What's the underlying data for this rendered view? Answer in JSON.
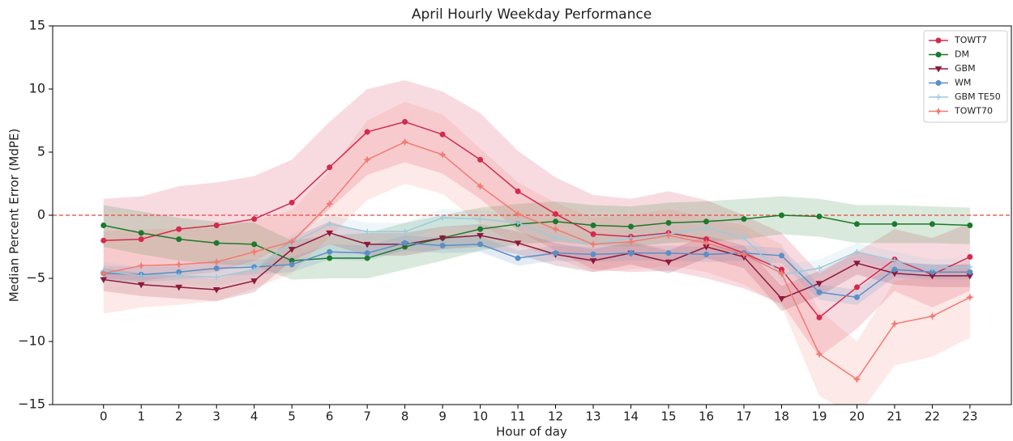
{
  "chart_data": {
    "type": "line",
    "title": "April Hourly Weekday Performance",
    "xlabel": "Hour of day",
    "ylabel": "Median Percent Error (MdPE)",
    "x": [
      0,
      1,
      2,
      3,
      4,
      5,
      6,
      7,
      8,
      9,
      10,
      11,
      12,
      13,
      14,
      15,
      16,
      17,
      18,
      19,
      20,
      21,
      22,
      23
    ],
    "xlim": [
      -1.35,
      24.1
    ],
    "xticks": [
      0,
      1,
      2,
      3,
      4,
      5,
      6,
      7,
      8,
      9,
      10,
      11,
      12,
      13,
      14,
      15,
      16,
      17,
      18,
      19,
      20,
      21,
      22,
      23
    ],
    "ylim": [
      -15,
      15
    ],
    "yticks": [
      {
        "value": -15,
        "label": "−15"
      },
      {
        "value": -10,
        "label": "−10"
      },
      {
        "value": -5,
        "label": "−5"
      },
      0,
      5,
      10,
      15
    ],
    "hline": {
      "value": 0,
      "color": "#e8463c"
    },
    "legend": "upper right",
    "series": [
      {
        "name": "TOWT7",
        "color": "#d42a4e",
        "marker": "circle",
        "values": [
          -2.0,
          -1.9,
          -1.1,
          -0.8,
          -0.3,
          1.0,
          3.8,
          6.6,
          7.4,
          6.4,
          4.4,
          1.9,
          0.1,
          -1.5,
          -1.7,
          -1.4,
          -1.9,
          -3.0,
          -4.3,
          -8.1,
          -5.7,
          -3.5,
          -4.7,
          -3.3
        ],
        "upper": [
          1.3,
          1.5,
          2.3,
          2.6,
          3.1,
          4.4,
          7.4,
          10.0,
          10.7,
          9.8,
          8.1,
          5.1,
          3.0,
          1.6,
          1.3,
          1.9,
          1.2,
          0.0,
          -1.4,
          -4.6,
          -2.9,
          -1.1,
          -1.8,
          -0.6
        ],
        "lower": [
          -5.0,
          -5.2,
          -4.8,
          -4.5,
          -3.6,
          -2.2,
          0.5,
          3.2,
          4.2,
          3.3,
          1.3,
          -1.2,
          -2.8,
          -4.3,
          -4.5,
          -4.4,
          -5.0,
          -5.8,
          -7.0,
          -11.2,
          -9.0,
          -6.0,
          -7.3,
          -6.0
        ]
      },
      {
        "name": "DM",
        "color": "#1b7a2c",
        "marker": "circle",
        "values": [
          -0.8,
          -1.4,
          -1.9,
          -2.2,
          -2.3,
          -3.6,
          -3.4,
          -3.4,
          -2.5,
          -1.8,
          -1.1,
          -0.7,
          -0.5,
          -0.8,
          -0.9,
          -0.6,
          -0.5,
          -0.3,
          0.0,
          -0.1,
          -0.7,
          -0.7,
          -0.7,
          -0.8
        ],
        "upper": [
          0.8,
          0.3,
          -0.2,
          -0.5,
          -0.6,
          -2.0,
          -1.6,
          -1.4,
          -0.6,
          0.0,
          0.6,
          0.9,
          1.1,
          0.8,
          0.7,
          1.0,
          1.1,
          1.3,
          1.5,
          1.3,
          0.8,
          0.8,
          0.7,
          0.6
        ],
        "lower": [
          -2.5,
          -3.1,
          -3.6,
          -3.9,
          -4.0,
          -5.1,
          -5.0,
          -5.0,
          -4.3,
          -3.6,
          -2.8,
          -2.3,
          -2.1,
          -2.4,
          -2.5,
          -2.2,
          -2.1,
          -1.9,
          -1.5,
          -1.7,
          -2.2,
          -2.2,
          -2.2,
          -2.3
        ]
      },
      {
        "name": "GBM",
        "color": "#8c1a3c",
        "marker": "triangle",
        "values": [
          -5.1,
          -5.5,
          -5.7,
          -5.9,
          -5.2,
          -2.7,
          -1.4,
          -2.3,
          -2.3,
          -1.8,
          -1.6,
          -2.2,
          -3.1,
          -3.6,
          -3.0,
          -3.7,
          -2.5,
          -3.3,
          -6.6,
          -5.4,
          -3.8,
          -4.6,
          -4.8,
          -4.8
        ],
        "upper": [
          -4.2,
          -4.6,
          -4.8,
          -5.0,
          -4.3,
          -1.8,
          -0.5,
          -1.4,
          -1.4,
          -0.9,
          -0.7,
          -1.3,
          -2.2,
          -2.7,
          -2.1,
          -2.8,
          -1.6,
          -2.4,
          -5.6,
          -4.4,
          -2.9,
          -3.7,
          -3.9,
          -3.9
        ],
        "lower": [
          -6.0,
          -6.4,
          -6.6,
          -6.8,
          -6.1,
          -3.6,
          -2.3,
          -3.2,
          -3.2,
          -2.7,
          -2.5,
          -3.1,
          -4.0,
          -4.5,
          -3.9,
          -4.6,
          -3.4,
          -4.2,
          -7.6,
          -6.4,
          -4.7,
          -5.5,
          -5.7,
          -5.7
        ]
      },
      {
        "name": "WM",
        "color": "#5a8fc6",
        "marker": "circle",
        "values": [
          -4.6,
          -4.7,
          -4.5,
          -4.2,
          -4.1,
          -3.9,
          -2.9,
          -3.0,
          -2.2,
          -2.4,
          -2.3,
          -3.4,
          -3.0,
          -3.1,
          -3.0,
          -3.0,
          -3.1,
          -3.0,
          -3.2,
          -6.1,
          -6.5,
          -4.3,
          -4.5,
          -4.5
        ],
        "upper": [
          -4.0,
          -4.1,
          -3.9,
          -3.6,
          -3.5,
          -3.3,
          -2.3,
          -2.4,
          -1.6,
          -1.8,
          -1.7,
          -2.8,
          -2.4,
          -2.5,
          -2.4,
          -2.4,
          -2.5,
          -2.4,
          -2.6,
          -5.5,
          -5.9,
          -3.7,
          -3.9,
          -3.9
        ],
        "lower": [
          -5.2,
          -5.3,
          -5.1,
          -4.8,
          -4.7,
          -4.5,
          -3.5,
          -3.6,
          -2.8,
          -3.0,
          -2.9,
          -4.0,
          -3.6,
          -3.7,
          -3.6,
          -3.6,
          -3.7,
          -3.6,
          -3.8,
          -6.7,
          -7.1,
          -4.9,
          -5.1,
          -5.1
        ]
      },
      {
        "name": "GBM TE50",
        "color": "#9ccade",
        "marker": "plus",
        "values": [
          -4.4,
          -4.8,
          -4.8,
          -4.9,
          -4.3,
          -2.2,
          -0.7,
          -1.3,
          -1.3,
          -0.2,
          -0.3,
          -0.6,
          -1.8,
          -2.3,
          -1.8,
          -1.5,
          -1.0,
          -1.8,
          -4.7,
          -4.2,
          -2.9,
          -3.6,
          -4.2,
          -4.1
        ],
        "upper": [
          -3.7,
          -4.1,
          -4.1,
          -4.2,
          -3.6,
          -1.5,
          0.0,
          -0.6,
          -0.6,
          0.5,
          0.4,
          0.1,
          -1.1,
          -1.6,
          -1.1,
          -0.8,
          -0.3,
          -1.1,
          -4.0,
          -3.5,
          -2.2,
          -2.9,
          -3.5,
          -3.4
        ],
        "lower": [
          -5.1,
          -5.5,
          -5.5,
          -5.6,
          -5.0,
          -2.9,
          -1.4,
          -2.0,
          -2.0,
          -0.9,
          -1.0,
          -1.3,
          -2.5,
          -3.0,
          -2.5,
          -2.2,
          -1.7,
          -2.5,
          -5.4,
          -4.9,
          -3.6,
          -4.3,
          -4.9,
          -4.8
        ]
      },
      {
        "name": "TOWT70",
        "color": "#f47a72",
        "marker": "star",
        "values": [
          -4.6,
          -4.0,
          -3.9,
          -3.7,
          -2.9,
          -2.1,
          0.9,
          4.4,
          5.8,
          4.8,
          2.3,
          0.1,
          -1.1,
          -2.3,
          -2.1,
          -1.6,
          -2.2,
          -3.1,
          -4.6,
          -11.0,
          -13.0,
          -8.6,
          -8.0,
          -6.5
        ],
        "upper": [
          -1.3,
          -1.1,
          -1.1,
          -1.0,
          -0.4,
          0.4,
          3.5,
          7.5,
          9.0,
          8.0,
          5.3,
          2.6,
          1.0,
          -0.2,
          0.0,
          0.5,
          -0.2,
          -0.8,
          -2.3,
          -7.5,
          -10.0,
          -5.2,
          -4.7,
          -3.5
        ],
        "lower": [
          -7.8,
          -7.3,
          -7.1,
          -6.8,
          -5.8,
          -4.6,
          -1.7,
          1.2,
          2.5,
          1.7,
          -0.7,
          -2.4,
          -3.4,
          -4.5,
          -4.3,
          -4.0,
          -4.5,
          -5.5,
          -7.2,
          -14.3,
          -16.0,
          -11.9,
          -11.2,
          -9.7
        ]
      }
    ]
  }
}
